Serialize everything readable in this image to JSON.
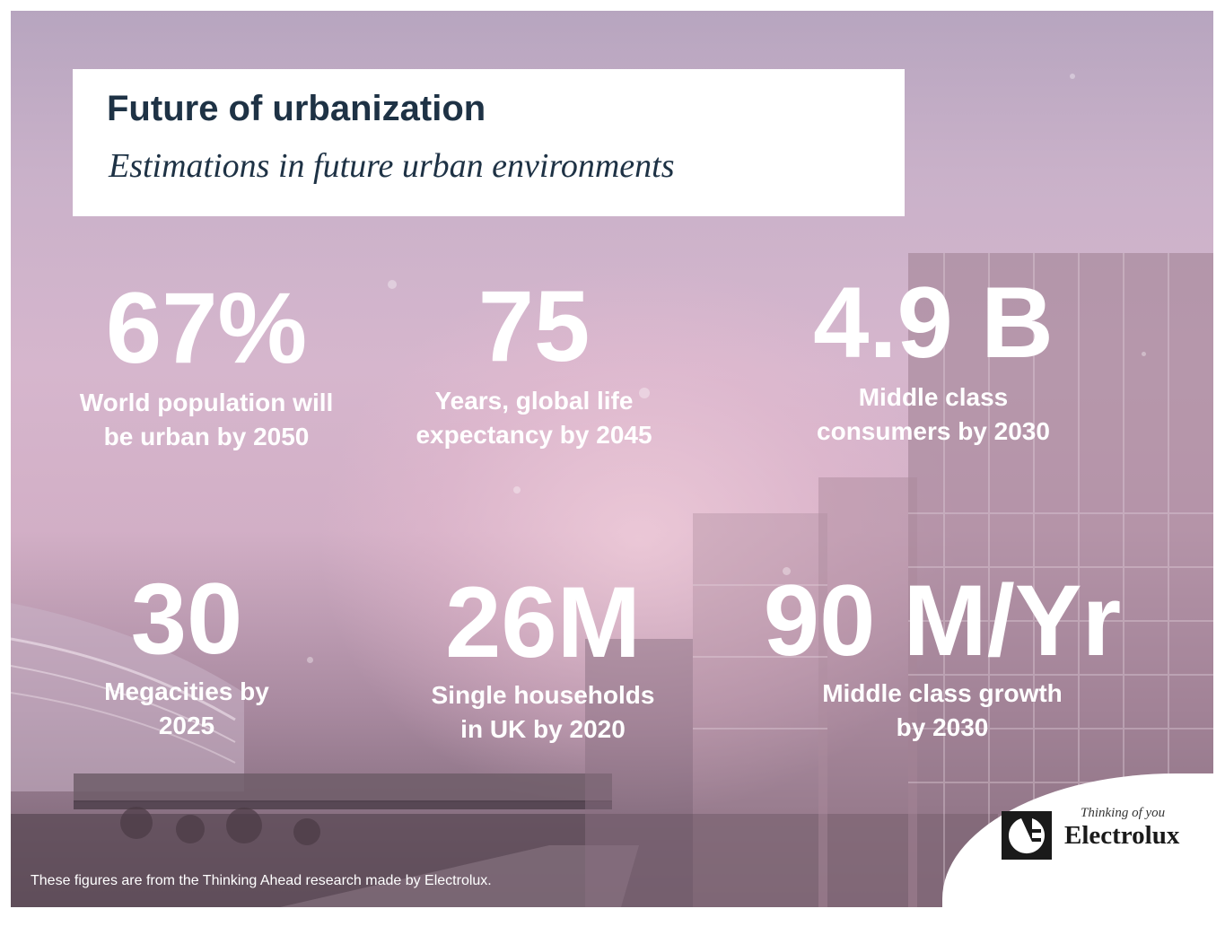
{
  "header": {
    "title": "Future of urbanization",
    "subtitle": "Estimations in future urban environments"
  },
  "stats": [
    {
      "value": "67%",
      "label_line1": "World population will",
      "label_line2": "be urban by 2050"
    },
    {
      "value": "75",
      "label_line1": "Years, global life",
      "label_line2": "expectancy by 2045"
    },
    {
      "value": "4.9 B",
      "label_line1": "Middle class",
      "label_line2": "consumers by 2030"
    },
    {
      "value": "30",
      "label_line1": "Megacities by",
      "label_line2": "2025"
    },
    {
      "value": "26M",
      "label_line1": "Single households",
      "label_line2": "in UK by 2020"
    },
    {
      "value": "90 M/Yr",
      "label_line1": "Middle class growth",
      "label_line2": "by 2030"
    }
  ],
  "footnote": "These figures are from the Thinking Ahead research made by Electrolux.",
  "brand": {
    "tagline": "Thinking of you",
    "name": "Electrolux",
    "icon": "electrolux-logo-icon"
  },
  "colors": {
    "title_text": "#1e3245",
    "stat_text": "#ffffff",
    "background_tint": "#d6b6cd"
  }
}
